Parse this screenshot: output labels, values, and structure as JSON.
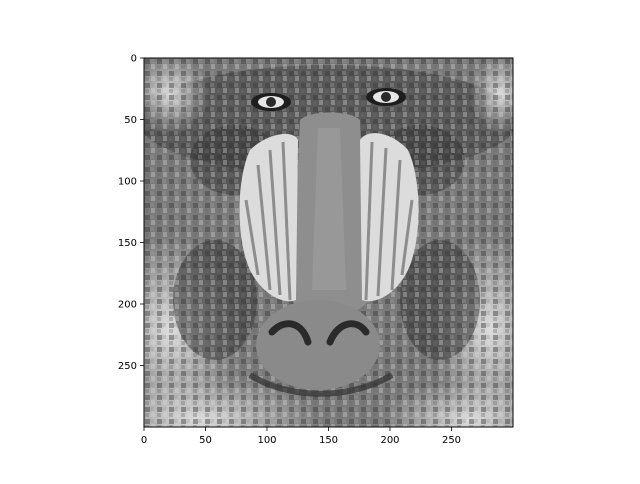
{
  "chart_data": {
    "type": "heatmap",
    "title": "",
    "xlabel": "",
    "ylabel": "",
    "xlim": [
      0,
      300
    ],
    "ylim": [
      300,
      0
    ],
    "x_ticks": [
      0,
      50,
      100,
      150,
      200,
      250
    ],
    "y_ticks": [
      0,
      50,
      100,
      150,
      200,
      250
    ],
    "colormap": "gray",
    "grid": false,
    "legend": "none",
    "image_content": "grayscale-mosaic-baboon-face"
  }
}
